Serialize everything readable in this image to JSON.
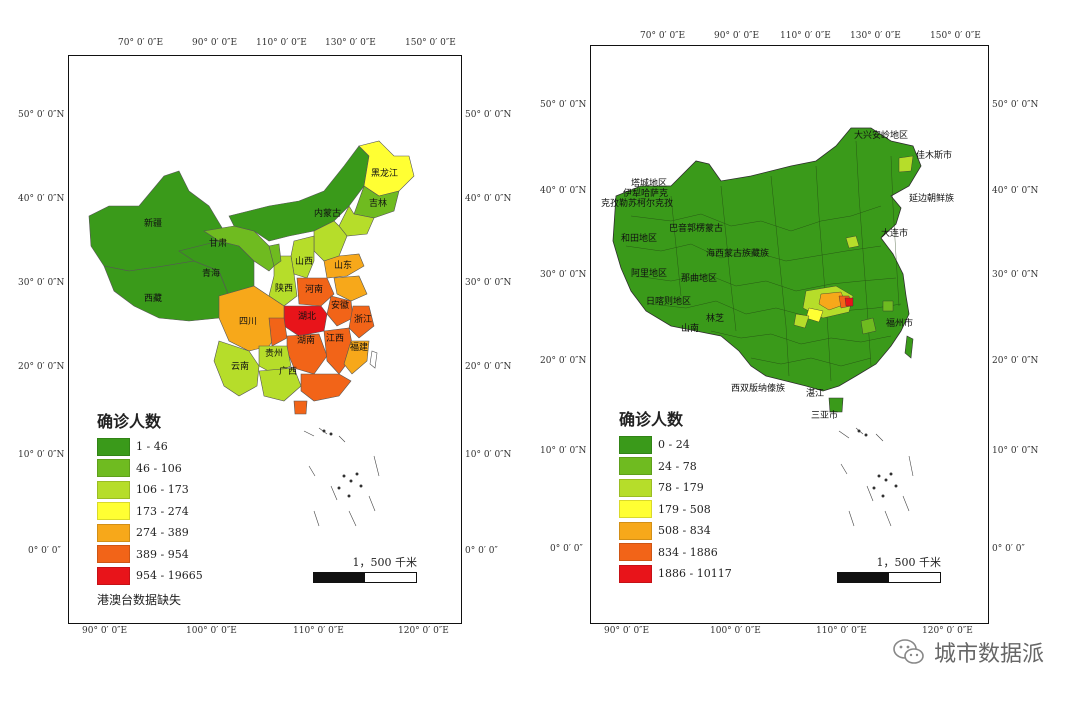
{
  "left_map": {
    "top_ticks": [
      "70° 0′ 0″E",
      "90° 0′ 0″E",
      "110° 0′ 0″E",
      "130° 0′ 0″E",
      "150° 0′ 0″E"
    ],
    "bottom_ticks": [
      "90° 0′ 0″E",
      "100° 0′ 0″E",
      "110° 0′ 0″E",
      "120° 0′ 0″E"
    ],
    "left_ticks": [
      "50° 0′ 0″N",
      "40° 0′ 0″N",
      "30° 0′ 0″N",
      "20° 0′ 0″N",
      "10° 0′ 0″N",
      "0° 0′ 0″"
    ],
    "right_ticks": [
      "50° 0′ 0″N",
      "40° 0′ 0″N",
      "30° 0′ 0″N",
      "20° 0′ 0″N",
      "10° 0′ 0″N",
      "0° 0′ 0″"
    ],
    "legend": {
      "title": "确诊人数",
      "classes": [
        {
          "label": "1 - 46",
          "color": "#3a9a1a"
        },
        {
          "label": "46 - 106",
          "color": "#6fbb20"
        },
        {
          "label": "106 - 173",
          "color": "#b6dd2a"
        },
        {
          "label": "173 - 274",
          "color": "#ffff33"
        },
        {
          "label": "274 - 389",
          "color": "#f7a81a"
        },
        {
          "label": "389 - 954",
          "color": "#f26418"
        },
        {
          "label": "954 - 19665",
          "color": "#e8141a"
        }
      ]
    },
    "scale_label": "1，500 千米",
    "note": "港澳台数据缺失",
    "province_labels": [
      "黑龙江",
      "新疆",
      "内蒙古",
      "吉林",
      "甘肃",
      "青海",
      "西藏",
      "四川",
      "河南",
      "湖北",
      "云南",
      "贵州",
      "广西",
      "湖南",
      "江西",
      "福建",
      "陕西",
      "山西",
      "山东",
      "安徽",
      "浙江"
    ]
  },
  "right_map": {
    "top_ticks": [
      "70° 0′ 0″E",
      "90° 0′ 0″E",
      "110° 0′ 0″E",
      "130° 0′ 0″E",
      "150° 0′ 0″E"
    ],
    "bottom_ticks": [
      "90° 0′ 0″E",
      "100° 0′ 0″E",
      "110° 0′ 0″E",
      "120° 0′ 0″E"
    ],
    "left_ticks": [
      "50° 0′ 0″N",
      "40° 0′ 0″N",
      "30° 0′ 0″N",
      "20° 0′ 0″N",
      "10° 0′ 0″N",
      "0° 0′ 0″"
    ],
    "right_ticks": [
      "50° 0′ 0″N",
      "40° 0′ 0″N",
      "30° 0′ 0″N",
      "20° 0′ 0″N",
      "10° 0′ 0″N",
      "0° 0′ 0″"
    ],
    "legend": {
      "title": "确诊人数",
      "classes": [
        {
          "label": "0 - 24",
          "color": "#3a9a1a"
        },
        {
          "label": "24 - 78",
          "color": "#6fbb20"
        },
        {
          "label": "78 - 179",
          "color": "#b6dd2a"
        },
        {
          "label": "179 - 508",
          "color": "#ffff33"
        },
        {
          "label": "508 - 834",
          "color": "#f7a81a"
        },
        {
          "label": "834 - 1886",
          "color": "#f26418"
        },
        {
          "label": "1886 - 10117",
          "color": "#e8141a"
        }
      ]
    },
    "scale_label": "1，500 千米",
    "city_labels": [
      "塔城地区",
      "伊犁哈萨克",
      "克孜勒苏柯尔克孜",
      "和田地区",
      "巴音郭楞蒙古",
      "海西蒙古族藏族",
      "阿里地区",
      "那曲地区",
      "日喀则地区",
      "林芝",
      "山南",
      "西双版纳傣族",
      "湛江",
      "三亚市",
      "大兴安岭地区",
      "佳木斯市",
      "延边朝鲜族",
      "大连市",
      "福州市"
    ]
  },
  "watermark": "城市数据派"
}
